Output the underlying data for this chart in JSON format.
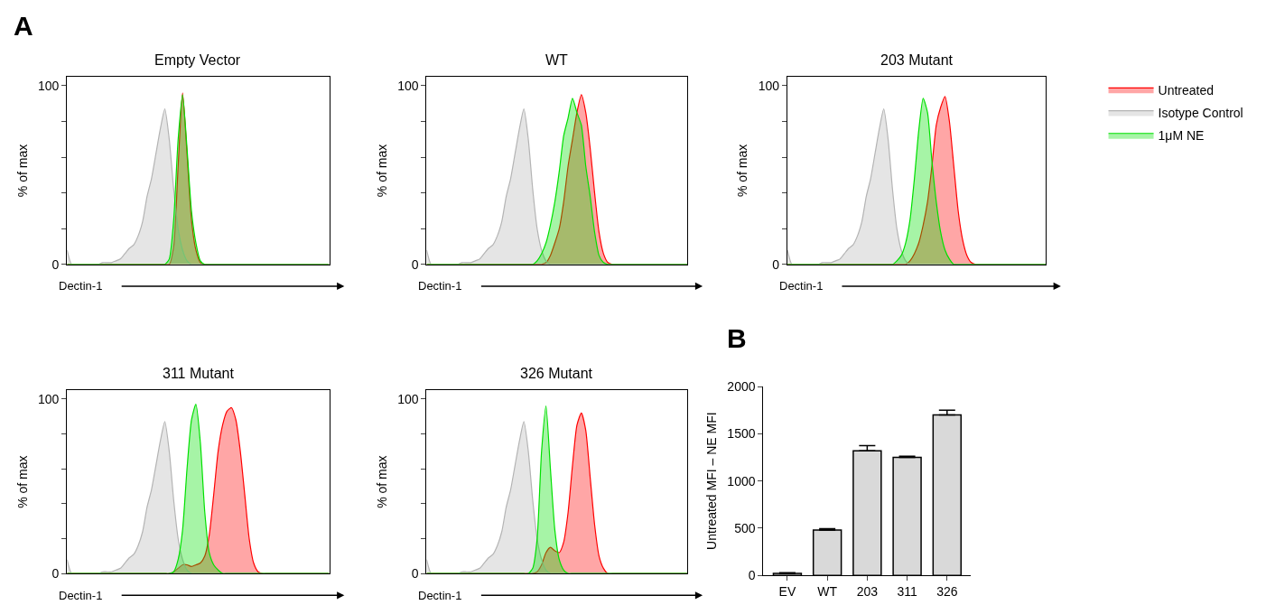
{
  "chart_data": [
    {
      "type": "area",
      "title": "Empty Vector",
      "xlabel": "Dectin-1",
      "ylabel": "% of max",
      "annotations": [
        "A"
      ],
      "legend": "right",
      "categories": [
        null,
        null,
        null,
        null,
        null,
        null,
        null,
        null,
        null,
        null,
        null,
        null,
        null,
        null,
        null,
        null,
        null,
        null,
        null,
        null,
        null,
        null,
        null,
        null,
        null,
        null,
        null,
        null,
        null,
        null,
        null,
        null,
        null,
        null,
        null,
        null,
        null,
        null,
        null,
        null,
        null,
        null,
        null,
        null,
        null,
        null,
        null,
        null,
        null,
        null,
        null,
        null,
        null,
        null,
        null,
        null,
        null,
        null,
        null,
        null
      ],
      "ylim": [
        0,
        105
      ],
      "yticks": [
        0,
        {
          "value": 20,
          "label": null
        },
        {
          "value": 40,
          "label": null
        },
        {
          "value": 60,
          "label": null
        },
        {
          "value": 80,
          "label": null
        },
        100
      ],
      "series": [
        {
          "name": "Untreated",
          "color": "#ff0000",
          "values": [
            0,
            0,
            0,
            0,
            0,
            0,
            0,
            0,
            0,
            0,
            0,
            0,
            0,
            0,
            0,
            0,
            0,
            0,
            0,
            0,
            0,
            0,
            0,
            0,
            10,
            55,
            96,
            62,
            25,
            8,
            1,
            0,
            0,
            0,
            0,
            0,
            0,
            0,
            0,
            0,
            0,
            0,
            0,
            0,
            0,
            0,
            0,
            0,
            0,
            0,
            0,
            0,
            0,
            0,
            0,
            0,
            0,
            0,
            0,
            0
          ]
        },
        {
          "name": "Isotype Control",
          "color": "#b4b4b4",
          "values": [
            8,
            0,
            0,
            0,
            0,
            0,
            0,
            0,
            1,
            1,
            1,
            2,
            3,
            6,
            9,
            11,
            16,
            24,
            38,
            48,
            62,
            76,
            87,
            70,
            42,
            20,
            8,
            2,
            0,
            0,
            0,
            0,
            0,
            0,
            0,
            0,
            0,
            0,
            0,
            0,
            0,
            0,
            0,
            0,
            0,
            0,
            0,
            0,
            0,
            0,
            0,
            0,
            0,
            0,
            0,
            0,
            0,
            0,
            0,
            0
          ]
        },
        {
          "name": "1μM NE",
          "color": "#00e000",
          "values": [
            0,
            0,
            0,
            0,
            0,
            0,
            0,
            0,
            0,
            0,
            0,
            0,
            0,
            0,
            0,
            0,
            0,
            0,
            0,
            0,
            0,
            0,
            0,
            3,
            25,
            70,
            95,
            65,
            30,
            12,
            2,
            0,
            0,
            0,
            0,
            0,
            0,
            0,
            0,
            0,
            0,
            0,
            0,
            0,
            0,
            0,
            0,
            0,
            0,
            0,
            0,
            0,
            0,
            0,
            0,
            0,
            0,
            0,
            0,
            0
          ]
        }
      ]
    },
    {
      "type": "area",
      "title": "WT",
      "xlabel": "Dectin-1",
      "ylabel": "% of max",
      "categories": [
        null,
        null,
        null,
        null,
        null,
        null,
        null,
        null,
        null,
        null,
        null,
        null,
        null,
        null,
        null,
        null,
        null,
        null,
        null,
        null,
        null,
        null,
        null,
        null,
        null,
        null,
        null,
        null,
        null,
        null,
        null,
        null,
        null,
        null,
        null,
        null,
        null,
        null,
        null,
        null,
        null,
        null,
        null,
        null,
        null,
        null,
        null,
        null,
        null,
        null,
        null,
        null,
        null,
        null,
        null,
        null,
        null,
        null,
        null,
        null
      ],
      "ylim": [
        0,
        105
      ],
      "yticks": [
        0,
        {
          "value": 20,
          "label": null
        },
        {
          "value": 40,
          "label": null
        },
        {
          "value": 60,
          "label": null
        },
        {
          "value": 80,
          "label": null
        },
        100
      ],
      "series": [
        {
          "color": "#ff0000",
          "values": [
            0,
            0,
            0,
            0,
            0,
            0,
            0,
            0,
            0,
            0,
            0,
            0,
            0,
            0,
            0,
            0,
            0,
            0,
            0,
            0,
            0,
            0,
            0,
            0,
            0,
            0,
            0,
            1,
            5,
            12,
            20,
            35,
            55,
            70,
            85,
            95,
            85,
            65,
            40,
            18,
            6,
            1,
            0,
            0,
            0,
            0,
            0,
            0,
            0,
            0,
            0,
            0,
            0,
            0,
            0,
            0,
            0,
            0,
            0,
            0
          ]
        },
        {
          "color": "#b4b4b4",
          "values": [
            8,
            0,
            0,
            0,
            0,
            0,
            0,
            0,
            1,
            1,
            1,
            2,
            3,
            6,
            9,
            11,
            16,
            24,
            38,
            48,
            62,
            76,
            87,
            70,
            42,
            20,
            8,
            2,
            0,
            0,
            0,
            0,
            0,
            0,
            0,
            0,
            0,
            0,
            0,
            0,
            0,
            0,
            0,
            0,
            0,
            0,
            0,
            0,
            0,
            0,
            0,
            0,
            0,
            0,
            0,
            0,
            0,
            0,
            0,
            0
          ]
        },
        {
          "color": "#00e000",
          "values": [
            0,
            0,
            0,
            0,
            0,
            0,
            0,
            0,
            0,
            0,
            0,
            0,
            0,
            0,
            0,
            0,
            0,
            0,
            0,
            0,
            0,
            0,
            0,
            0,
            0,
            2,
            6,
            12,
            22,
            35,
            52,
            72,
            82,
            93,
            85,
            78,
            55,
            38,
            18,
            5,
            1,
            0,
            0,
            0,
            0,
            0,
            0,
            0,
            0,
            0,
            0,
            0,
            0,
            0,
            0,
            0,
            0,
            0,
            0,
            0
          ]
        }
      ]
    },
    {
      "type": "area",
      "title": "203 Mutant",
      "xlabel": "Dectin-1",
      "ylabel": "% of max",
      "categories": [
        null,
        null,
        null,
        null,
        null,
        null,
        null,
        null,
        null,
        null,
        null,
        null,
        null,
        null,
        null,
        null,
        null,
        null,
        null,
        null,
        null,
        null,
        null,
        null,
        null,
        null,
        null,
        null,
        null,
        null,
        null,
        null,
        null,
        null,
        null,
        null,
        null,
        null,
        null,
        null,
        null,
        null,
        null,
        null,
        null,
        null,
        null,
        null,
        null,
        null,
        null,
        null,
        null,
        null,
        null,
        null,
        null,
        null,
        null,
        null
      ],
      "ylim": [
        0,
        105
      ],
      "yticks": [
        0,
        {
          "value": 20,
          "label": null
        },
        {
          "value": 40,
          "label": null
        },
        {
          "value": 60,
          "label": null
        },
        {
          "value": 80,
          "label": null
        },
        100
      ],
      "series": [
        {
          "color": "#ff0000",
          "values": [
            0,
            0,
            0,
            0,
            0,
            0,
            0,
            0,
            0,
            0,
            0,
            0,
            0,
            0,
            0,
            0,
            0,
            0,
            0,
            0,
            0,
            0,
            0,
            0,
            0,
            0,
            0,
            0,
            2,
            6,
            12,
            22,
            35,
            55,
            78,
            88,
            94,
            80,
            55,
            30,
            14,
            5,
            1,
            0,
            0,
            0,
            0,
            0,
            0,
            0,
            0,
            0,
            0,
            0,
            0,
            0,
            0,
            0,
            0,
            0
          ]
        },
        {
          "color": "#b4b4b4",
          "values": [
            8,
            0,
            0,
            0,
            0,
            0,
            0,
            0,
            1,
            1,
            1,
            2,
            3,
            6,
            9,
            11,
            16,
            24,
            38,
            48,
            62,
            76,
            87,
            70,
            42,
            20,
            8,
            2,
            0,
            0,
            0,
            0,
            0,
            0,
            0,
            0,
            0,
            0,
            0,
            0,
            0,
            0,
            0,
            0,
            0,
            0,
            0,
            0,
            0,
            0,
            0,
            0,
            0,
            0,
            0,
            0,
            0,
            0,
            0,
            0
          ]
        },
        {
          "color": "#00e000",
          "values": [
            0,
            0,
            0,
            0,
            0,
            0,
            0,
            0,
            0,
            0,
            0,
            0,
            0,
            0,
            0,
            0,
            0,
            0,
            0,
            0,
            0,
            0,
            0,
            0,
            0,
            2,
            5,
            12,
            25,
            48,
            75,
            93,
            85,
            58,
            35,
            18,
            8,
            3,
            0,
            0,
            0,
            0,
            0,
            0,
            0,
            0,
            0,
            0,
            0,
            0,
            0,
            0,
            0,
            0,
            0,
            0,
            0,
            0,
            0,
            0
          ]
        }
      ]
    },
    {
      "type": "area",
      "title": "311 Mutant",
      "xlabel": "Dectin-1",
      "ylabel": "% of max",
      "categories": [
        null,
        null,
        null,
        null,
        null,
        null,
        null,
        null,
        null,
        null,
        null,
        null,
        null,
        null,
        null,
        null,
        null,
        null,
        null,
        null,
        null,
        null,
        null,
        null,
        null,
        null,
        null,
        null,
        null,
        null,
        null,
        null,
        null,
        null,
        null,
        null,
        null,
        null,
        null,
        null,
        null,
        null,
        null,
        null,
        null,
        null,
        null,
        null,
        null,
        null,
        null,
        null,
        null,
        null,
        null,
        null,
        null,
        null,
        null,
        null
      ],
      "ylim": [
        0,
        105
      ],
      "yticks": [
        0,
        {
          "value": 20,
          "label": null
        },
        {
          "value": 40,
          "label": null
        },
        {
          "value": 60,
          "label": null
        },
        {
          "value": 80,
          "label": null
        },
        100
      ],
      "series": [
        {
          "color": "#ff0000",
          "values": [
            0,
            0,
            0,
            0,
            0,
            0,
            0,
            0,
            0,
            0,
            0,
            0,
            0,
            0,
            0,
            0,
            0,
            0,
            0,
            0,
            0,
            0,
            0,
            0,
            1,
            3,
            5,
            5,
            4,
            5,
            6,
            10,
            22,
            45,
            70,
            85,
            93,
            95,
            88,
            70,
            45,
            20,
            6,
            1,
            0,
            0,
            0,
            0,
            0,
            0,
            0,
            0,
            0,
            0,
            0,
            0,
            0,
            0,
            0,
            0
          ]
        },
        {
          "color": "#b4b4b4",
          "values": [
            8,
            0,
            0,
            0,
            0,
            0,
            0,
            0,
            1,
            1,
            1,
            2,
            3,
            6,
            9,
            11,
            16,
            24,
            38,
            48,
            62,
            76,
            87,
            70,
            42,
            20,
            8,
            2,
            0,
            0,
            0,
            0,
            0,
            0,
            0,
            0,
            0,
            0,
            0,
            0,
            0,
            0,
            0,
            0,
            0,
            0,
            0,
            0,
            0,
            0,
            0,
            0,
            0,
            0,
            0,
            0,
            0,
            0,
            0,
            0
          ]
        },
        {
          "color": "#00e000",
          "values": [
            0,
            0,
            0,
            0,
            0,
            0,
            0,
            0,
            0,
            0,
            0,
            0,
            0,
            0,
            0,
            0,
            0,
            0,
            0,
            0,
            0,
            0,
            0,
            0,
            1,
            8,
            25,
            60,
            88,
            97,
            75,
            35,
            12,
            5,
            2,
            0,
            0,
            0,
            0,
            0,
            0,
            0,
            0,
            0,
            0,
            0,
            0,
            0,
            0,
            0,
            0,
            0,
            0,
            0,
            0,
            0,
            0,
            0,
            0,
            0
          ]
        }
      ]
    },
    {
      "type": "area",
      "title": "326 Mutant",
      "xlabel": "Dectin-1",
      "ylabel": "% of max",
      "categories": [
        null,
        null,
        null,
        null,
        null,
        null,
        null,
        null,
        null,
        null,
        null,
        null,
        null,
        null,
        null,
        null,
        null,
        null,
        null,
        null,
        null,
        null,
        null,
        null,
        null,
        null,
        null,
        null,
        null,
        null,
        null,
        null,
        null,
        null,
        null,
        null,
        null,
        null,
        null,
        null,
        null,
        null,
        null,
        null,
        null,
        null,
        null,
        null,
        null,
        null,
        null,
        null,
        null,
        null,
        null,
        null,
        null,
        null,
        null,
        null
      ],
      "ylim": [
        0,
        105
      ],
      "yticks": [
        0,
        {
          "value": 20,
          "label": null
        },
        {
          "value": 40,
          "label": null
        },
        {
          "value": 60,
          "label": null
        },
        {
          "value": 80,
          "label": null
        },
        100
      ],
      "series": [
        {
          "color": "#ff0000",
          "values": [
            0,
            0,
            0,
            0,
            0,
            0,
            0,
            0,
            0,
            0,
            0,
            0,
            0,
            0,
            0,
            0,
            0,
            0,
            0,
            0,
            0,
            0,
            0,
            0,
            0,
            1,
            5,
            12,
            15,
            13,
            12,
            18,
            35,
            62,
            85,
            92,
            82,
            55,
            28,
            10,
            3,
            0,
            0,
            0,
            0,
            0,
            0,
            0,
            0,
            0,
            0,
            0,
            0,
            0,
            0,
            0,
            0,
            0,
            0,
            0
          ]
        },
        {
          "color": "#b4b4b4",
          "values": [
            8,
            0,
            0,
            0,
            0,
            0,
            0,
            0,
            1,
            1,
            1,
            2,
            3,
            6,
            9,
            11,
            16,
            24,
            38,
            48,
            62,
            76,
            87,
            70,
            42,
            20,
            8,
            2,
            0,
            0,
            0,
            0,
            0,
            0,
            0,
            0,
            0,
            0,
            0,
            0,
            0,
            0,
            0,
            0,
            0,
            0,
            0,
            0,
            0,
            0,
            0,
            0,
            0,
            0,
            0,
            0,
            0,
            0,
            0,
            0
          ]
        },
        {
          "color": "#00e000",
          "values": [
            0,
            0,
            0,
            0,
            0,
            0,
            0,
            0,
            0,
            0,
            0,
            0,
            0,
            0,
            0,
            0,
            0,
            0,
            0,
            0,
            0,
            0,
            0,
            0,
            3,
            20,
            70,
            96,
            60,
            25,
            8,
            2,
            0,
            0,
            0,
            0,
            0,
            0,
            0,
            0,
            0,
            0,
            0,
            0,
            0,
            0,
            0,
            0,
            0,
            0,
            0,
            0,
            0,
            0,
            0,
            0,
            0,
            0,
            0,
            0
          ]
        }
      ]
    },
    {
      "type": "bar",
      "ylabel": "Untreated MFI – NE MFI",
      "annotations": [
        "B"
      ],
      "categories": [
        "EV",
        "WT",
        "203",
        "311",
        "326"
      ],
      "ylim": [
        0,
        2000
      ],
      "yticks": [
        0,
        500,
        1000,
        1500,
        2000
      ],
      "series": [
        {
          "color": "#d9d9d9",
          "values": [
            20,
            480,
            1320,
            1250,
            1700
          ],
          "errors": [
            [
              20,
              28
            ],
            [
              480,
              495
            ],
            [
              1320,
              1375
            ],
            [
              1250,
              1262
            ],
            [
              1700,
              1750
            ]
          ]
        }
      ]
    }
  ]
}
